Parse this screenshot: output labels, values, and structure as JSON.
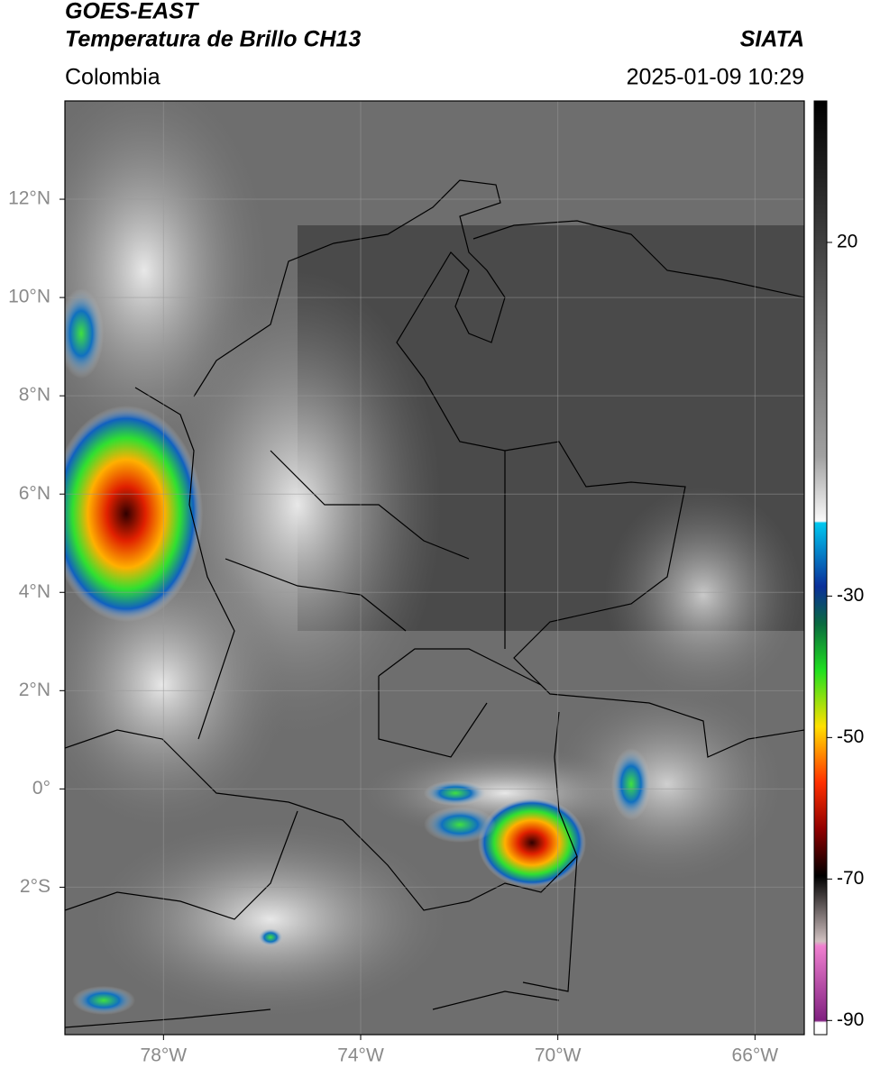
{
  "header": {
    "title": "GOES-EAST",
    "subtitle": "Temperatura de Brillo CH13",
    "source": "SIATA",
    "region": "Colombia",
    "timestamp": "2025-01-09 10:29"
  },
  "map": {
    "xlim": [
      -80,
      -65
    ],
    "ylim": [
      -5,
      14
    ],
    "xticks": [
      {
        "value": -78,
        "label": "78°W"
      },
      {
        "value": -74,
        "label": "74°W"
      },
      {
        "value": -70,
        "label": "70°W"
      },
      {
        "value": -66,
        "label": "66°W"
      }
    ],
    "yticks": [
      {
        "value": 12,
        "label": "12°N"
      },
      {
        "value": 10,
        "label": "10°N"
      },
      {
        "value": 8,
        "label": "8°N"
      },
      {
        "value": 6,
        "label": "6°N"
      },
      {
        "value": 4,
        "label": "4°N"
      },
      {
        "value": 2,
        "label": "2°N"
      },
      {
        "value": 0,
        "label": "0°"
      },
      {
        "value": -2,
        "label": "2°S"
      }
    ],
    "grid": true
  },
  "colorbar": {
    "lim": [
      -92,
      40
    ],
    "ticks": [
      20,
      -30,
      -50,
      -70,
      -90
    ]
  }
}
